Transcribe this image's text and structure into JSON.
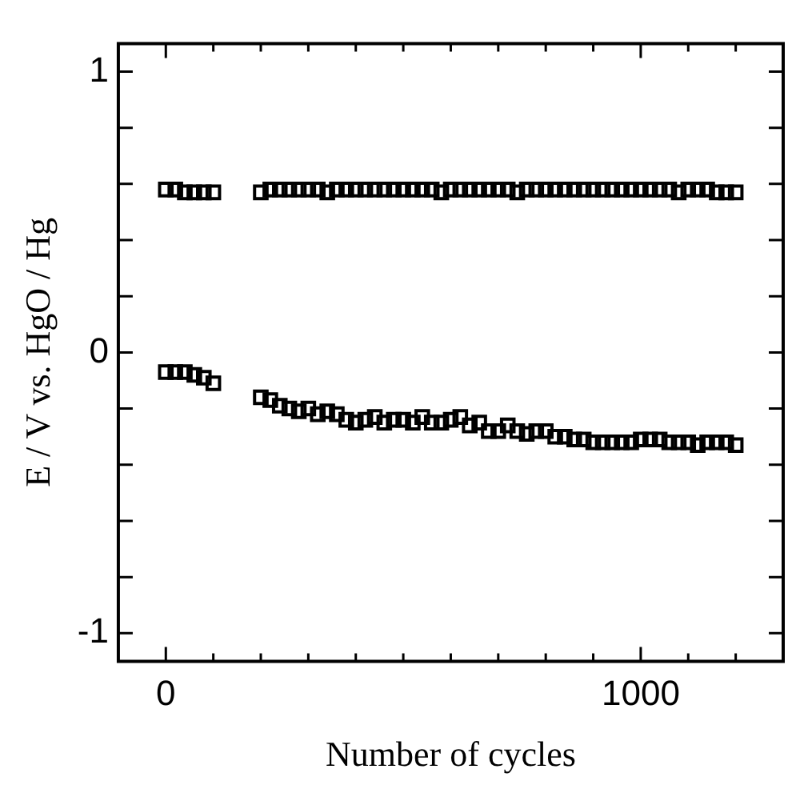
{
  "chart_data": {
    "type": "scatter",
    "xlabel": "Number of cycles",
    "ylabel": "E / V vs. HgO / Hg",
    "marker": "square",
    "xlim": [
      -100,
      1300
    ],
    "ylim": [
      -1.1,
      1.1
    ],
    "xticks": [
      0,
      {
        "value": 100,
        "label": null
      },
      {
        "value": 200,
        "label": null
      },
      {
        "value": 300,
        "label": null
      },
      {
        "value": 400,
        "label": null
      },
      {
        "value": 500,
        "label": null
      },
      {
        "value": 600,
        "label": null
      },
      {
        "value": 700,
        "label": null
      },
      {
        "value": 800,
        "label": null
      },
      {
        "value": 900,
        "label": null
      },
      1000,
      {
        "value": 1100,
        "label": null
      },
      {
        "value": 1200,
        "label": null
      }
    ],
    "yticks": [
      -1,
      {
        "value": -0.8,
        "label": null
      },
      {
        "value": -0.6,
        "label": null
      },
      {
        "value": -0.4,
        "label": null
      },
      {
        "value": -0.2,
        "label": null
      },
      0,
      {
        "value": 0.2,
        "label": null
      },
      {
        "value": 0.4,
        "label": null
      },
      {
        "value": 0.6,
        "label": null
      },
      {
        "value": 0.8,
        "label": null
      },
      1
    ],
    "grid": false,
    "legend": false,
    "series": [
      {
        "color": "#000000",
        "x": [
          0,
          20,
          40,
          60,
          80,
          100,
          200,
          220,
          240,
          260,
          280,
          300,
          320,
          340,
          360,
          380,
          400,
          420,
          440,
          460,
          480,
          500,
          520,
          540,
          560,
          580,
          600,
          620,
          640,
          660,
          680,
          700,
          720,
          740,
          760,
          780,
          800,
          820,
          840,
          860,
          880,
          900,
          920,
          940,
          960,
          980,
          1000,
          1020,
          1040,
          1060,
          1080,
          1100,
          1120,
          1140,
          1160,
          1180,
          1200
        ],
        "values": [
          0.58,
          0.58,
          0.57,
          0.57,
          0.57,
          0.57,
          0.57,
          0.58,
          0.58,
          0.58,
          0.58,
          0.58,
          0.58,
          0.57,
          0.58,
          0.58,
          0.58,
          0.58,
          0.58,
          0.58,
          0.58,
          0.58,
          0.58,
          0.58,
          0.58,
          0.57,
          0.58,
          0.58,
          0.58,
          0.58,
          0.58,
          0.58,
          0.58,
          0.57,
          0.58,
          0.58,
          0.58,
          0.58,
          0.58,
          0.58,
          0.58,
          0.58,
          0.58,
          0.58,
          0.58,
          0.58,
          0.58,
          0.58,
          0.58,
          0.58,
          0.57,
          0.58,
          0.58,
          0.58,
          0.57,
          0.57,
          0.57
        ]
      },
      {
        "color": "#000000",
        "x": [
          0,
          20,
          40,
          60,
          80,
          100,
          200,
          220,
          240,
          260,
          280,
          300,
          320,
          340,
          360,
          380,
          400,
          420,
          440,
          460,
          480,
          500,
          520,
          540,
          560,
          580,
          600,
          620,
          640,
          660,
          680,
          700,
          720,
          740,
          760,
          780,
          800,
          820,
          840,
          860,
          880,
          900,
          920,
          940,
          960,
          980,
          1000,
          1020,
          1040,
          1060,
          1080,
          1100,
          1120,
          1140,
          1160,
          1180,
          1200
        ],
        "values": [
          -0.07,
          -0.07,
          -0.07,
          -0.08,
          -0.09,
          -0.11,
          -0.16,
          -0.17,
          -0.19,
          -0.2,
          -0.21,
          -0.2,
          -0.22,
          -0.21,
          -0.22,
          -0.24,
          -0.25,
          -0.24,
          -0.23,
          -0.25,
          -0.24,
          -0.24,
          -0.25,
          -0.23,
          -0.25,
          -0.25,
          -0.24,
          -0.23,
          -0.26,
          -0.25,
          -0.28,
          -0.28,
          -0.26,
          -0.28,
          -0.29,
          -0.28,
          -0.28,
          -0.3,
          -0.3,
          -0.31,
          -0.31,
          -0.32,
          -0.32,
          -0.32,
          -0.32,
          -0.32,
          -0.31,
          -0.31,
          -0.31,
          -0.32,
          -0.32,
          -0.32,
          -0.33,
          -0.32,
          -0.32,
          -0.32,
          -0.33
        ]
      }
    ]
  }
}
